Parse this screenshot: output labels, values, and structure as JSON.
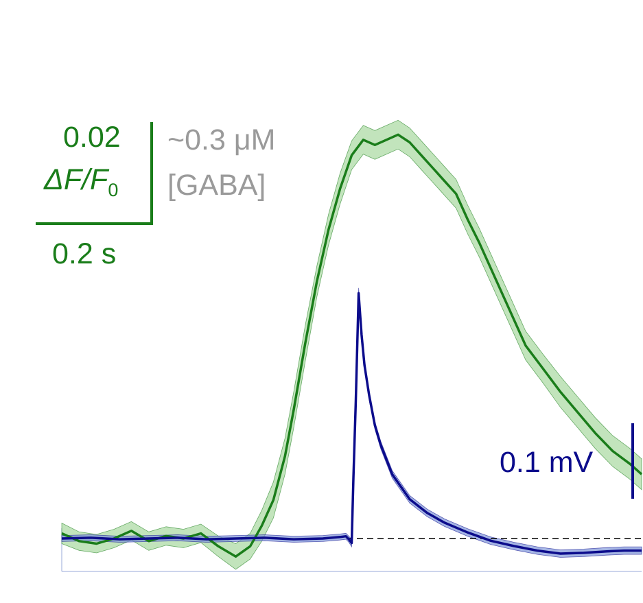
{
  "colors": {
    "fluorescence": "#1a7d1a",
    "fluorescence_band": "#b7dfb0",
    "voltage": "#0c0c8c",
    "voltage_band": "#7f96d8",
    "gaba": "#9a9a9a",
    "baseline": "#000000"
  },
  "scale_bars": {
    "df_value": "0.02",
    "df_label_main": "ΔF/F",
    "df_label_sub": "0",
    "time": "0.2 s",
    "gaba_conc": "~0.3 μM",
    "gaba_label": "[GABA]",
    "voltage": "0.1 mV"
  },
  "chart_data": {
    "type": "line",
    "title": "",
    "xlabel": "",
    "ylabel": "",
    "x_unit": "s",
    "xlim": [
      0,
      1.0
    ],
    "baseline_dashed": true,
    "series": [
      {
        "key": "fluorescence",
        "unit": "ΔF/F0",
        "band": "± shaded",
        "x": [
          0.0,
          0.03,
          0.06,
          0.09,
          0.12,
          0.15,
          0.18,
          0.21,
          0.24,
          0.27,
          0.3,
          0.325,
          0.345,
          0.365,
          0.385,
          0.4,
          0.42,
          0.44,
          0.46,
          0.48,
          0.5,
          0.52,
          0.54,
          0.56,
          0.58,
          0.6,
          0.62,
          0.64,
          0.66,
          0.68,
          0.7,
          0.72,
          0.74,
          0.76,
          0.78,
          0.8,
          0.83,
          0.86,
          0.89,
          0.92,
          0.95,
          0.98,
          1.0
        ],
        "values": [
          0.001,
          -0.0005,
          -0.001,
          0.0,
          0.0015,
          -0.0005,
          0.0005,
          0.0,
          0.001,
          -0.0015,
          -0.0035,
          -0.0015,
          0.0025,
          0.0075,
          0.016,
          0.025,
          0.038,
          0.05,
          0.06,
          0.068,
          0.0745,
          0.0775,
          0.0765,
          0.0775,
          0.0785,
          0.077,
          0.0745,
          0.072,
          0.0695,
          0.067,
          0.062,
          0.0575,
          0.0525,
          0.0475,
          0.0425,
          0.0375,
          0.033,
          0.0285,
          0.0245,
          0.0205,
          0.017,
          0.0145,
          0.0125
        ],
        "sem": [
          0.002,
          0.0018,
          0.0018,
          0.0018,
          0.0018,
          0.0018,
          0.0018,
          0.0018,
          0.0018,
          0.002,
          0.0025,
          0.0025,
          0.003,
          0.0035,
          0.0035,
          0.0035,
          0.0035,
          0.003,
          0.003,
          0.003,
          0.0028,
          0.0028,
          0.0028,
          0.0028,
          0.0028,
          0.0028,
          0.0028,
          0.0028,
          0.0028,
          0.0028,
          0.0028,
          0.0028,
          0.0028,
          0.0028,
          0.0028,
          0.0028,
          0.0028,
          0.003,
          0.003,
          0.003,
          0.003,
          0.003,
          0.003
        ]
      },
      {
        "key": "voltage",
        "unit": "mV",
        "band": "± shaded",
        "x": [
          0.0,
          0.05,
          0.1,
          0.15,
          0.2,
          0.25,
          0.3,
          0.35,
          0.4,
          0.45,
          0.48,
          0.49,
          0.495,
          0.5,
          0.503,
          0.507,
          0.512,
          0.517,
          0.522,
          0.53,
          0.54,
          0.55,
          0.57,
          0.6,
          0.63,
          0.66,
          0.7,
          0.74,
          0.78,
          0.82,
          0.86,
          0.9,
          0.94,
          0.97,
          1.0
        ],
        "values": [
          0.0,
          0.001,
          -0.001,
          0.0,
          0.001,
          -0.001,
          0.0,
          0.001,
          -0.001,
          0.0,
          0.002,
          0.003,
          -0.001,
          -0.006,
          0.08,
          0.18,
          0.325,
          0.27,
          0.23,
          0.19,
          0.15,
          0.124,
          0.085,
          0.052,
          0.034,
          0.021,
          0.008,
          -0.003,
          -0.01,
          -0.016,
          -0.02,
          -0.019,
          -0.017,
          -0.016,
          -0.016
        ],
        "sem": [
          0.004,
          0.004,
          0.004,
          0.004,
          0.004,
          0.004,
          0.004,
          0.004,
          0.004,
          0.004,
          0.004,
          0.004,
          0.004,
          0.005,
          0.006,
          0.006,
          0.007,
          0.006,
          0.006,
          0.006,
          0.005,
          0.005,
          0.005,
          0.005,
          0.005,
          0.005,
          0.005,
          0.005,
          0.005,
          0.005,
          0.005,
          0.005,
          0.005,
          0.005,
          0.005
        ]
      }
    ],
    "scale_bar_values": {
      "df_f0": 0.02,
      "time_s": 0.2,
      "voltage_mV": 0.1
    }
  }
}
